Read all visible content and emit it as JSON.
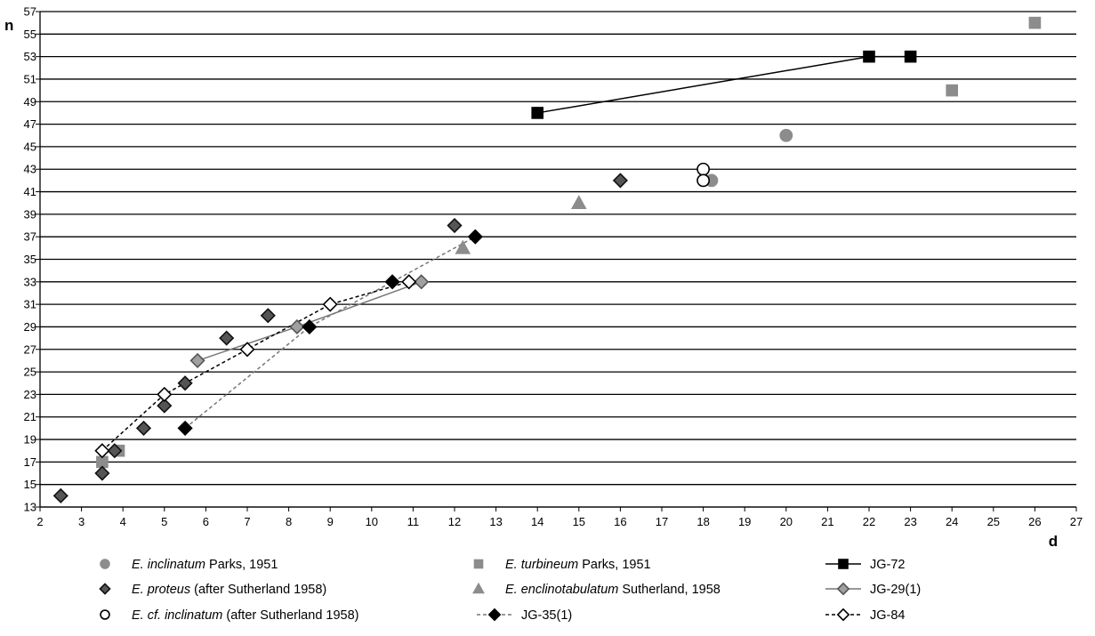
{
  "chart_data": {
    "type": "scatter",
    "xlabel": "d",
    "ylabel": "n",
    "xlim": [
      2,
      27
    ],
    "ylim": [
      13,
      57
    ],
    "xticks": [
      2,
      3,
      4,
      5,
      6,
      7,
      8,
      9,
      10,
      11,
      12,
      13,
      14,
      15,
      16,
      17,
      18,
      19,
      20,
      21,
      22,
      23,
      24,
      25,
      26,
      27
    ],
    "yticks": [
      13,
      15,
      17,
      19,
      21,
      23,
      25,
      27,
      29,
      31,
      33,
      35,
      37,
      39,
      41,
      43,
      45,
      47,
      49,
      51,
      53,
      55,
      57
    ],
    "grid": "horizontal",
    "legend_position": "bottom",
    "series": [
      {
        "name_italic": "E. inclinatum",
        "name_rest": " Parks, 1951",
        "marker": "circle",
        "fill": "#8c8c8c",
        "stroke": "#8c8c8c",
        "line": "none",
        "points": [
          [
            20,
            46
          ],
          [
            18.2,
            42
          ]
        ]
      },
      {
        "name_italic": "E. turbineum",
        "name_rest": " Parks, 1951",
        "marker": "square",
        "fill": "#8c8c8c",
        "stroke": "#8c8c8c",
        "line": "none",
        "points": [
          [
            3.5,
            17
          ],
          [
            3.9,
            18
          ],
          [
            24,
            50
          ],
          [
            26,
            56
          ]
        ]
      },
      {
        "name_italic": "",
        "name_rest": "JG-72",
        "marker": "square",
        "fill": "#000000",
        "stroke": "#000000",
        "line": "solid",
        "line_color": "#000000",
        "points": [
          [
            14,
            48
          ],
          [
            22,
            53
          ],
          [
            23,
            53
          ]
        ]
      },
      {
        "name_italic": "E. proteus",
        "name_rest": " (after Sutherland 1958)",
        "marker": "diamond",
        "fill": "#555555",
        "stroke": "#111111",
        "line": "none",
        "points": [
          [
            2.5,
            14
          ],
          [
            3.5,
            16
          ],
          [
            3.8,
            18
          ],
          [
            4.5,
            20
          ],
          [
            5,
            22
          ],
          [
            5.5,
            24
          ],
          [
            6.5,
            28
          ],
          [
            7.5,
            30
          ],
          [
            12,
            38
          ],
          [
            16,
            42
          ]
        ]
      },
      {
        "name_italic": "E. enclinotabulatum",
        "name_rest": " Sutherland, 1958",
        "marker": "triangle",
        "fill": "#8c8c8c",
        "stroke": "#8c8c8c",
        "line": "none",
        "points": [
          [
            12.2,
            36
          ],
          [
            15,
            40
          ]
        ]
      },
      {
        "name_italic": "",
        "name_rest": "JG-29(1)",
        "marker": "diamond",
        "fill": "#a0a0a0",
        "stroke": "#555555",
        "line": "solid",
        "line_color": "#777777",
        "points": [
          [
            5.8,
            26
          ],
          [
            8.2,
            29
          ],
          [
            11.2,
            33
          ]
        ]
      },
      {
        "name_italic": "E. cf. inclinatum",
        "name_rest": " (after Sutherland 1958)",
        "marker": "circle",
        "fill": "#ffffff",
        "stroke": "#000000",
        "line": "none",
        "points": [
          [
            18,
            43
          ],
          [
            18,
            42
          ]
        ]
      },
      {
        "name_italic": "",
        "name_rest": "JG-35(1)",
        "marker": "diamond",
        "fill": "#000000",
        "stroke": "#000000",
        "line": "dashed",
        "line_color": "#777777",
        "points": [
          [
            5.5,
            20
          ],
          [
            8.5,
            29
          ],
          [
            10.5,
            33
          ],
          [
            12.5,
            37
          ]
        ]
      },
      {
        "name_italic": "",
        "name_rest": "JG-84",
        "marker": "diamond",
        "fill": "#ffffff",
        "stroke": "#000000",
        "line": "dashed",
        "line_color": "#000000",
        "points": [
          [
            3.5,
            18
          ],
          [
            5,
            23
          ],
          [
            7,
            27
          ],
          [
            9,
            31
          ],
          [
            10.9,
            33
          ]
        ]
      }
    ]
  }
}
